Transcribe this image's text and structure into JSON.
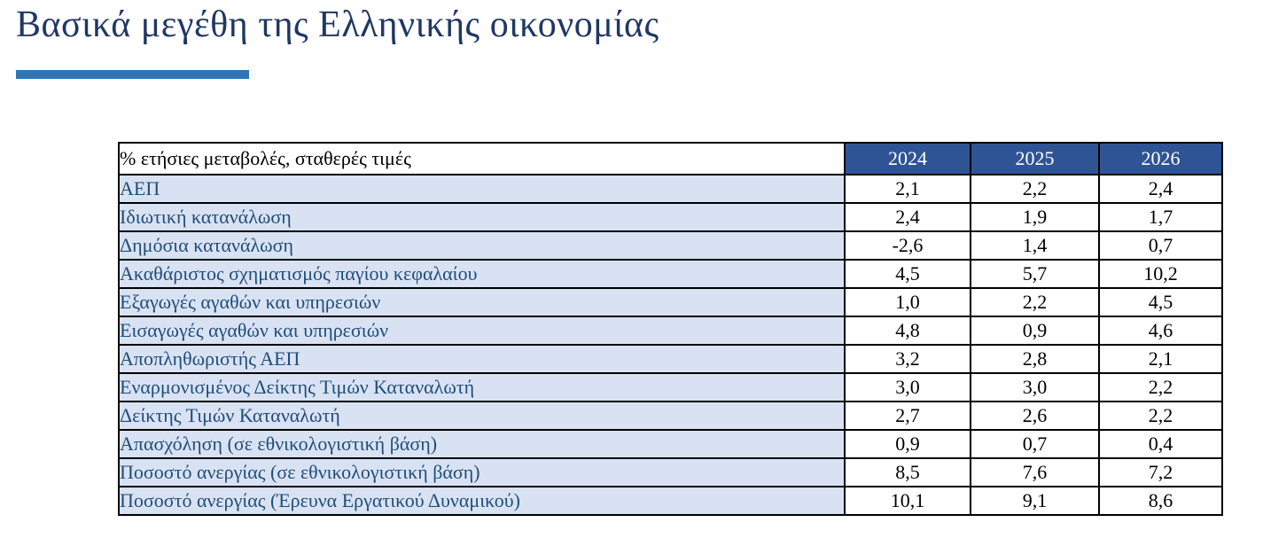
{
  "page": {
    "title": "Βασικά μεγέθη της Ελληνικής οικονομίας"
  },
  "colors": {
    "title_text": "#1F3864",
    "title_accent_bar": "#2E75B6",
    "table_header_bg": "#2F5496",
    "table_header_text": "#FFFFFF",
    "row_label_bg": "#D9E2F3",
    "row_label_text": "#1F4E79",
    "value_text": "#000000",
    "grid_border": "#000000",
    "page_bg": "#FFFFFF"
  },
  "table": {
    "header_label": "% ετήσιες μεταβολές, σταθερές τιμές",
    "years": [
      "2024",
      "2025",
      "2026"
    ],
    "rows": [
      {
        "label": "ΑΕΠ",
        "values": [
          "2,1",
          "2,2",
          "2,4"
        ]
      },
      {
        "label": "Ιδιωτική κατανάλωση",
        "values": [
          "2,4",
          "1,9",
          "1,7"
        ]
      },
      {
        "label": "Δημόσια κατανάλωση",
        "values": [
          "-2,6",
          "1,4",
          "0,7"
        ]
      },
      {
        "label": "Ακαθάριστος σχηματισμός παγίου κεφαλαίου",
        "values": [
          "4,5",
          "5,7",
          "10,2"
        ]
      },
      {
        "label": "Εξαγωγές αγαθών και υπηρεσιών",
        "values": [
          "1,0",
          "2,2",
          "4,5"
        ]
      },
      {
        "label": "Εισαγωγές αγαθών και υπηρεσιών",
        "values": [
          "4,8",
          "0,9",
          "4,6"
        ]
      },
      {
        "label": "Αποπληθωριστής ΑΕΠ",
        "values": [
          "3,2",
          "2,8",
          "2,1"
        ]
      },
      {
        "label": "Εναρμονισμένος Δείκτης Τιμών Καταναλωτή",
        "values": [
          "3,0",
          "3,0",
          "2,2"
        ]
      },
      {
        "label": "Δείκτης Τιμών Καταναλωτή",
        "values": [
          "2,7",
          "2,6",
          "2,2"
        ]
      },
      {
        "label": "Απασχόληση (σε εθνικολογιστική βάση)",
        "values": [
          "0,9",
          "0,7",
          "0,4"
        ]
      },
      {
        "label": "Ποσοστό ανεργίας (σε εθνικολογιστική βάση)",
        "values": [
          "8,5",
          "7,6",
          "7,2"
        ]
      },
      {
        "label": "Ποσοστό ανεργίας (Έρευνα Εργατικού Δυναμικού)",
        "values": [
          "10,1",
          "9,1",
          "8,6"
        ]
      }
    ]
  },
  "chart_data": {
    "type": "table",
    "title": "Βασικά μεγέθη της Ελληνικής οικονομίας",
    "unit_note": "% ετήσιες μεταβολές, σταθερές τιμές",
    "columns": [
      "2024",
      "2025",
      "2026"
    ],
    "rows": [
      {
        "label": "ΑΕΠ",
        "values": [
          2.1,
          2.2,
          2.4
        ]
      },
      {
        "label": "Ιδιωτική κατανάλωση",
        "values": [
          2.4,
          1.9,
          1.7
        ]
      },
      {
        "label": "Δημόσια κατανάλωση",
        "values": [
          -2.6,
          1.4,
          0.7
        ]
      },
      {
        "label": "Ακαθάριστος σχηματισμός παγίου κεφαλαίου",
        "values": [
          4.5,
          5.7,
          10.2
        ]
      },
      {
        "label": "Εξαγωγές αγαθών και υπηρεσιών",
        "values": [
          1.0,
          2.2,
          4.5
        ]
      },
      {
        "label": "Εισαγωγές αγαθών και υπηρεσιών",
        "values": [
          4.8,
          0.9,
          4.6
        ]
      },
      {
        "label": "Αποπληθωριστής ΑΕΠ",
        "values": [
          3.2,
          2.8,
          2.1
        ]
      },
      {
        "label": "Εναρμονισμένος Δείκτης Τιμών Καταναλωτή",
        "values": [
          3.0,
          3.0,
          2.2
        ]
      },
      {
        "label": "Δείκτης Τιμών Καταναλωτή",
        "values": [
          2.7,
          2.6,
          2.2
        ]
      },
      {
        "label": "Απασχόληση (σε εθνικολογιστική βάση)",
        "values": [
          0.9,
          0.7,
          0.4
        ]
      },
      {
        "label": "Ποσοστό ανεργίας (σε εθνικολογιστική βάση)",
        "values": [
          8.5,
          7.6,
          7.2
        ]
      },
      {
        "label": "Ποσοστό ανεργίας (Έρευνα Εργατικού Δυναμικού)",
        "values": [
          10.1,
          9.1,
          8.6
        ]
      }
    ]
  }
}
